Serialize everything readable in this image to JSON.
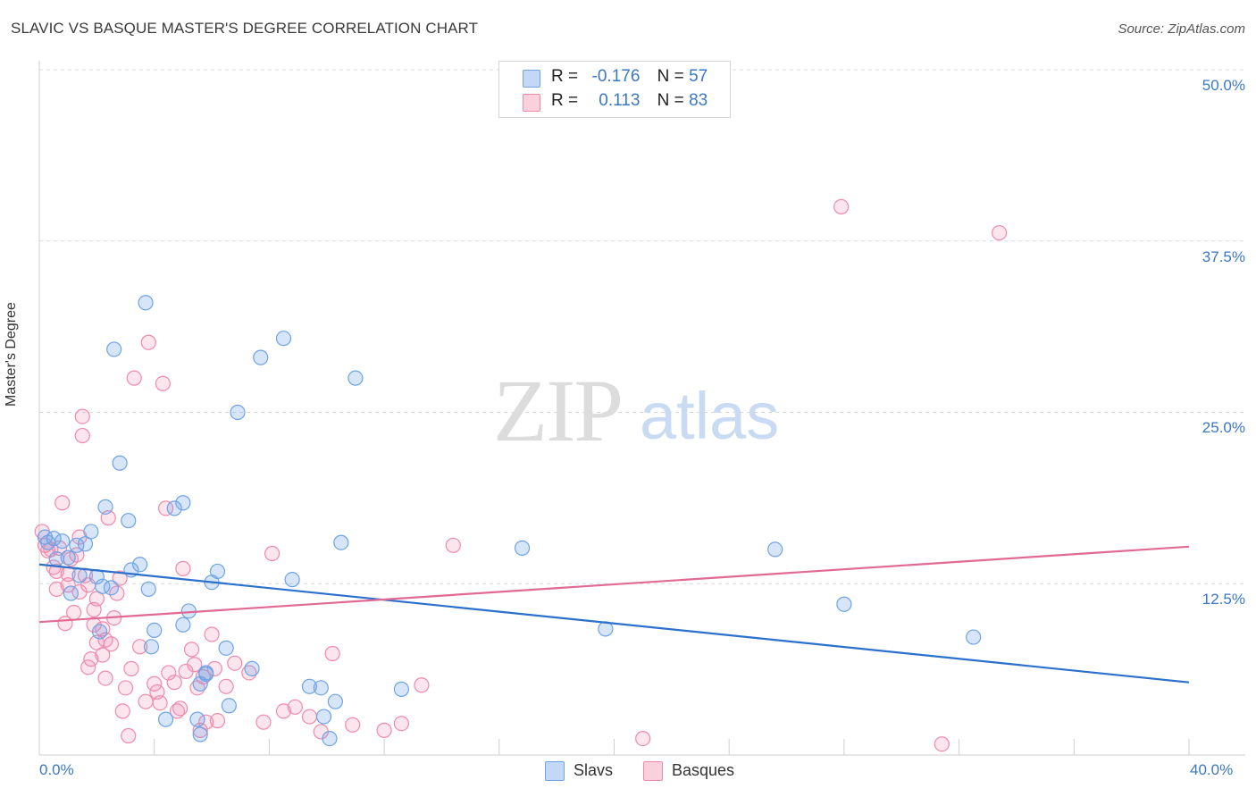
{
  "title": "SLAVIC VS BASQUE MASTER'S DEGREE CORRELATION CHART",
  "source": "Source: ZipAtlas.com",
  "watermark_zip": "ZIP",
  "watermark_atlas": "atlas",
  "legend": {
    "r_label": "R =",
    "n_label": "N =",
    "slavs_r": "-0.176",
    "slavs_n": "57",
    "basques_r": "0.113",
    "basques_n": "83"
  },
  "bottom_legend": {
    "slavs": "Slavs",
    "basques": "Basques"
  },
  "x_tick_left": "0.0%",
  "x_tick_right": "40.0%",
  "y_ticks": [
    "50.0%",
    "37.5%",
    "25.0%",
    "12.5%"
  ],
  "colors": {
    "slavs": "#6fa3e6",
    "basques": "#f08aab",
    "slavs_line": "#2a70cc",
    "basques_line": "#e06a94",
    "tick_text": "#3b78c3"
  },
  "chart_data": {
    "type": "scatter",
    "title": "SLAVIC VS BASQUE MASTER'S DEGREE CORRELATION CHART",
    "xlabel": "",
    "ylabel": "Master's Degree",
    "xlim": [
      0,
      40
    ],
    "ylim": [
      0,
      50
    ],
    "y_gridlines": [
      12.5,
      25.0,
      37.5,
      50.0
    ],
    "series": [
      {
        "name": "Slavs",
        "r": -0.176,
        "n": 57,
        "trend": [
          [
            0,
            13.9
          ],
          [
            40,
            5.3
          ]
        ],
        "points": [
          [
            0.2,
            15.9
          ],
          [
            0.3,
            15.5
          ],
          [
            0.5,
            15.8
          ],
          [
            0.6,
            14.3
          ],
          [
            0.8,
            15.6
          ],
          [
            1.0,
            14.4
          ],
          [
            1.1,
            11.8
          ],
          [
            1.3,
            15.3
          ],
          [
            1.4,
            13.1
          ],
          [
            1.6,
            15.4
          ],
          [
            1.8,
            16.3
          ],
          [
            2.0,
            13.0
          ],
          [
            2.1,
            9.0
          ],
          [
            2.3,
            18.1
          ],
          [
            2.2,
            12.3
          ],
          [
            2.5,
            12.2
          ],
          [
            2.6,
            29.6
          ],
          [
            2.8,
            21.3
          ],
          [
            3.1,
            17.1
          ],
          [
            3.2,
            13.5
          ],
          [
            3.5,
            13.9
          ],
          [
            3.7,
            33.0
          ],
          [
            3.8,
            12.1
          ],
          [
            4.0,
            9.1
          ],
          [
            4.4,
            2.6
          ],
          [
            4.7,
            18.0
          ],
          [
            5.0,
            18.4
          ],
          [
            5.0,
            9.5
          ],
          [
            5.2,
            10.5
          ],
          [
            5.5,
            2.6
          ],
          [
            5.6,
            1.5
          ],
          [
            5.6,
            5.2
          ],
          [
            5.8,
            6.0
          ],
          [
            6.0,
            12.6
          ],
          [
            6.2,
            13.4
          ],
          [
            6.5,
            7.8
          ],
          [
            6.6,
            3.6
          ],
          [
            6.9,
            25.0
          ],
          [
            7.4,
            6.3
          ],
          [
            7.7,
            29.0
          ],
          [
            8.5,
            30.4
          ],
          [
            8.8,
            12.8
          ],
          [
            9.4,
            5.0
          ],
          [
            9.8,
            4.9
          ],
          [
            9.9,
            2.8
          ],
          [
            10.1,
            1.2
          ],
          [
            10.3,
            3.9
          ],
          [
            10.5,
            15.5
          ],
          [
            11.0,
            27.5
          ],
          [
            12.6,
            4.8
          ],
          [
            16.8,
            15.1
          ],
          [
            19.7,
            9.2
          ],
          [
            25.6,
            15.0
          ],
          [
            28.0,
            11.0
          ],
          [
            32.5,
            8.6
          ],
          [
            3.9,
            7.9
          ],
          [
            5.8,
            5.9
          ]
        ]
      },
      {
        "name": "Basques",
        "r": 0.113,
        "n": 83,
        "trend": [
          [
            0,
            9.7
          ],
          [
            40,
            15.2
          ]
        ],
        "points": [
          [
            0.1,
            16.3
          ],
          [
            0.2,
            15.3
          ],
          [
            0.3,
            14.9
          ],
          [
            0.4,
            15.0
          ],
          [
            0.5,
            13.7
          ],
          [
            0.6,
            13.4
          ],
          [
            0.6,
            12.1
          ],
          [
            0.7,
            15.1
          ],
          [
            0.8,
            18.4
          ],
          [
            0.9,
            9.6
          ],
          [
            1.0,
            12.4
          ],
          [
            1.0,
            13.2
          ],
          [
            1.1,
            14.3
          ],
          [
            1.2,
            10.4
          ],
          [
            1.3,
            14.6
          ],
          [
            1.4,
            11.9
          ],
          [
            1.4,
            15.9
          ],
          [
            1.5,
            24.7
          ],
          [
            1.5,
            23.3
          ],
          [
            1.6,
            13.1
          ],
          [
            1.7,
            12.4
          ],
          [
            1.7,
            6.4
          ],
          [
            1.8,
            7.0
          ],
          [
            1.9,
            10.6
          ],
          [
            1.9,
            9.5
          ],
          [
            2.0,
            8.2
          ],
          [
            2.0,
            11.4
          ],
          [
            2.2,
            9.2
          ],
          [
            2.2,
            7.3
          ],
          [
            2.3,
            5.6
          ],
          [
            2.3,
            8.4
          ],
          [
            2.4,
            17.3
          ],
          [
            2.5,
            8.1
          ],
          [
            2.6,
            10.0
          ],
          [
            2.7,
            11.8
          ],
          [
            2.8,
            12.9
          ],
          [
            2.9,
            3.2
          ],
          [
            3.0,
            4.9
          ],
          [
            3.1,
            1.4
          ],
          [
            3.2,
            6.3
          ],
          [
            3.3,
            27.5
          ],
          [
            3.5,
            7.9
          ],
          [
            3.7,
            3.9
          ],
          [
            3.8,
            30.1
          ],
          [
            4.0,
            5.2
          ],
          [
            4.1,
            4.6
          ],
          [
            4.2,
            3.8
          ],
          [
            4.3,
            27.1
          ],
          [
            4.4,
            18.0
          ],
          [
            4.5,
            6.0
          ],
          [
            4.7,
            5.3
          ],
          [
            4.8,
            3.2
          ],
          [
            4.9,
            3.4
          ],
          [
            5.0,
            13.6
          ],
          [
            5.1,
            6.1
          ],
          [
            5.3,
            7.7
          ],
          [
            5.4,
            6.6
          ],
          [
            5.5,
            4.9
          ],
          [
            5.6,
            1.8
          ],
          [
            5.7,
            5.7
          ],
          [
            5.8,
            2.4
          ],
          [
            6.0,
            8.8
          ],
          [
            6.1,
            6.3
          ],
          [
            6.2,
            2.5
          ],
          [
            6.5,
            5.0
          ],
          [
            6.8,
            6.7
          ],
          [
            7.3,
            6.0
          ],
          [
            7.8,
            2.4
          ],
          [
            8.1,
            14.7
          ],
          [
            8.5,
            3.2
          ],
          [
            8.9,
            3.5
          ],
          [
            9.4,
            2.8
          ],
          [
            9.8,
            1.7
          ],
          [
            10.2,
            7.4
          ],
          [
            10.9,
            2.2
          ],
          [
            12.0,
            1.8
          ],
          [
            12.6,
            2.3
          ],
          [
            13.3,
            5.1
          ],
          [
            14.4,
            15.3
          ],
          [
            21.0,
            1.2
          ],
          [
            27.9,
            40.0
          ],
          [
            31.4,
            0.8
          ],
          [
            33.4,
            38.1
          ]
        ]
      }
    ]
  }
}
